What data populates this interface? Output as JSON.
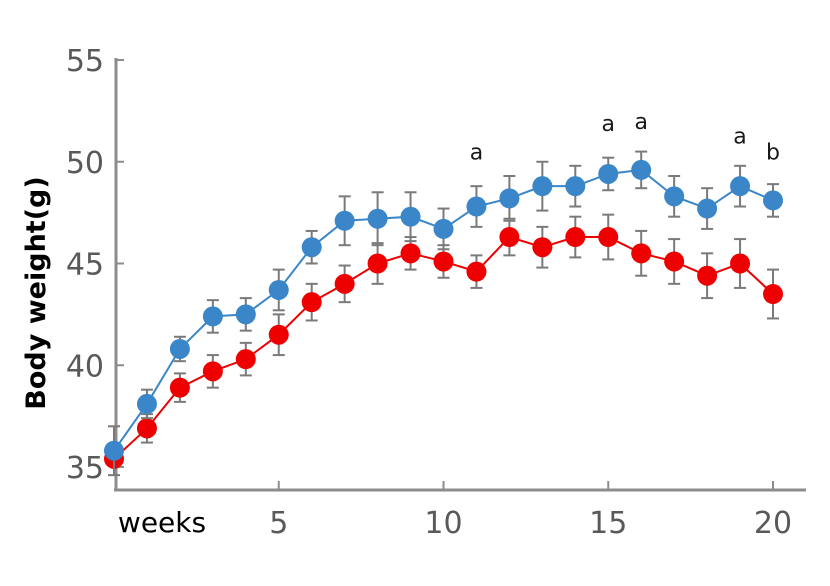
{
  "chart_data": {
    "type": "line",
    "title": "",
    "ylabel": "Body weight(g)",
    "xlabel": "weeks",
    "ylim": [
      35,
      55
    ],
    "xlim": [
      0,
      20.8
    ],
    "y_ticks": [
      35,
      40,
      45,
      50,
      55
    ],
    "x_ticks": [
      5,
      10,
      15,
      20
    ],
    "grid": false,
    "x": [
      0,
      1,
      2,
      3,
      4,
      5,
      6,
      7,
      8,
      9,
      10,
      11,
      12,
      13,
      14,
      15,
      16,
      17,
      18,
      19,
      20
    ],
    "series": [
      {
        "color": "#3a86c8",
        "values": [
          35.8,
          38.1,
          40.8,
          42.4,
          42.5,
          43.7,
          45.8,
          47.1,
          47.2,
          47.3,
          46.7,
          47.8,
          48.2,
          48.8,
          48.8,
          49.4,
          49.6,
          48.3,
          47.7,
          48.8,
          48.1
        ],
        "errors": [
          1.2,
          0.7,
          0.6,
          0.8,
          0.8,
          1.0,
          0.8,
          1.2,
          1.3,
          1.2,
          1.0,
          1.0,
          1.1,
          1.2,
          1.0,
          0.8,
          0.9,
          1.0,
          1.0,
          1.0,
          0.8
        ]
      },
      {
        "color": "#ee0000",
        "values": [
          35.4,
          36.9,
          38.9,
          39.7,
          40.3,
          41.5,
          43.1,
          44.0,
          45.0,
          45.5,
          45.1,
          44.6,
          46.3,
          45.8,
          46.3,
          46.3,
          45.5,
          45.1,
          44.4,
          45.0,
          43.5
        ],
        "errors": [
          0.3,
          0.7,
          0.7,
          0.8,
          0.8,
          1.0,
          0.9,
          0.9,
          1.0,
          0.8,
          0.8,
          0.8,
          0.9,
          1.0,
          1.0,
          1.1,
          1.1,
          1.1,
          1.1,
          1.2,
          1.2
        ]
      }
    ],
    "annotations": [
      {
        "x": 11,
        "y": 50.1,
        "text": "a"
      },
      {
        "x": 15,
        "y": 51.5,
        "text": "a"
      },
      {
        "x": 16,
        "y": 51.6,
        "text": "a"
      },
      {
        "x": 19,
        "y": 50.9,
        "text": "a"
      },
      {
        "x": 20,
        "y": 50.1,
        "text": "b"
      }
    ]
  }
}
